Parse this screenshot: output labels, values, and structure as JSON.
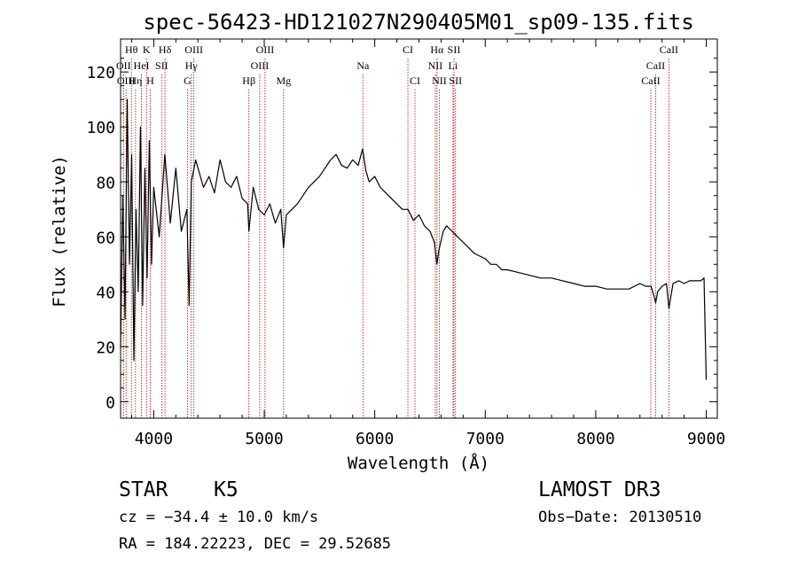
{
  "chart_data": {
    "type": "line",
    "title": "spec-56423-HD121027N290405M01_sp09-135.fits",
    "xlabel": "Wavelength (Å)",
    "ylabel": "Flux (relative)",
    "xlim": [
      3700,
      9100
    ],
    "ylim": [
      -6,
      132
    ],
    "xticks": [
      4000,
      5000,
      6000,
      7000,
      8000,
      9000
    ],
    "yticks": [
      0,
      20,
      40,
      60,
      80,
      100,
      120
    ],
    "grid": false,
    "series": [
      {
        "name": "flux",
        "x": [
          3700,
          3720,
          3740,
          3760,
          3780,
          3800,
          3820,
          3840,
          3860,
          3880,
          3900,
          3920,
          3940,
          3960,
          3980,
          4000,
          4050,
          4100,
          4150,
          4200,
          4250,
          4300,
          4320,
          4340,
          4380,
          4450,
          4500,
          4550,
          4600,
          4650,
          4700,
          4750,
          4800,
          4850,
          4861,
          4900,
          4950,
          5000,
          5050,
          5100,
          5150,
          5175,
          5200,
          5250,
          5300,
          5350,
          5400,
          5450,
          5500,
          5550,
          5600,
          5650,
          5700,
          5750,
          5800,
          5850,
          5890,
          5920,
          5950,
          6000,
          6050,
          6100,
          6150,
          6200,
          6250,
          6300,
          6350,
          6400,
          6450,
          6500,
          6540,
          6563,
          6580,
          6620,
          6650,
          6700,
          6750,
          6800,
          6850,
          6900,
          6950,
          7000,
          7050,
          7100,
          7150,
          7200,
          7300,
          7400,
          7500,
          7600,
          7700,
          7800,
          7900,
          8000,
          8100,
          8200,
          8300,
          8400,
          8450,
          8500,
          8530,
          8542,
          8560,
          8600,
          8640,
          8662,
          8700,
          8750,
          8800,
          8850,
          8900,
          8950,
          8980,
          9000
        ],
        "y": [
          20,
          75,
          30,
          110,
          50,
          90,
          15,
          70,
          40,
          100,
          35,
          85,
          45,
          95,
          50,
          78,
          60,
          90,
          65,
          85,
          62,
          70,
          35,
          80,
          88,
          78,
          82,
          76,
          88,
          80,
          78,
          82,
          74,
          72,
          62,
          78,
          70,
          68,
          72,
          65,
          70,
          56,
          68,
          70,
          72,
          75,
          78,
          80,
          82,
          85,
          88,
          90,
          86,
          85,
          88,
          86,
          92,
          84,
          80,
          82,
          78,
          76,
          74,
          72,
          70,
          70,
          66,
          68,
          64,
          62,
          58,
          50,
          55,
          62,
          64,
          62,
          60,
          58,
          56,
          54,
          53,
          52,
          50,
          50,
          48,
          48,
          47,
          46,
          45,
          45,
          44,
          43,
          42,
          42,
          41,
          41,
          41,
          43,
          42,
          42,
          38,
          36,
          40,
          42,
          43,
          34,
          43,
          44,
          43,
          44,
          44,
          44,
          45,
          8
        ]
      }
    ],
    "lines": [
      {
        "label": "Hθ",
        "x": 3798,
        "row": 0
      },
      {
        "label": "K",
        "x": 3934,
        "row": 0
      },
      {
        "label": "Hδ",
        "x": 4102,
        "row": 0
      },
      {
        "label": "OIII",
        "x": 4363,
        "row": 0
      },
      {
        "label": "OIII",
        "x": 5007,
        "row": 0
      },
      {
        "label": "CI",
        "x": 6300,
        "row": 0
      },
      {
        "label": "Hα",
        "x": 6563,
        "row": 0
      },
      {
        "label": "SII",
        "x": 6717,
        "row": 0
      },
      {
        "label": "CaII",
        "x": 8662,
        "row": 0
      },
      {
        "label": "OII",
        "x": 3727,
        "row": 1
      },
      {
        "label": "HeI",
        "x": 3889,
        "row": 1
      },
      {
        "label": "SII",
        "x": 4072,
        "row": 1
      },
      {
        "label": "Hγ",
        "x": 4340,
        "row": 1
      },
      {
        "label": "OIII",
        "x": 4959,
        "row": 1
      },
      {
        "label": "Na",
        "x": 5893,
        "row": 1
      },
      {
        "label": "NII",
        "x": 6548,
        "row": 1
      },
      {
        "label": "Li",
        "x": 6708,
        "row": 1
      },
      {
        "label": "CaII",
        "x": 8542,
        "row": 1
      },
      {
        "label": "OIII",
        "x": 3750,
        "row": 2
      },
      {
        "label": "Hη",
        "x": 3835,
        "row": 2
      },
      {
        "label": "H",
        "x": 3968,
        "row": 2
      },
      {
        "label": "G",
        "x": 4305,
        "row": 2
      },
      {
        "label": "Hβ",
        "x": 4861,
        "row": 2
      },
      {
        "label": "Mg",
        "x": 5175,
        "row": 2
      },
      {
        "label": "CI",
        "x": 6364,
        "row": 2
      },
      {
        "label": "NII",
        "x": 6584,
        "row": 2
      },
      {
        "label": "SII",
        "x": 6731,
        "row": 2
      },
      {
        "label": "CaII",
        "x": 8498,
        "row": 2
      }
    ]
  },
  "info": {
    "object_class": "STAR",
    "subclass": "K5",
    "survey": "LAMOST DR3",
    "redshift_line": "cz = −34.4 ± 10.0 km/s",
    "obs_date": "Obs−Date: 20130510",
    "coords": "RA = 184.22223, DEC =  29.52685"
  },
  "colors": {
    "spectrum": "#000000",
    "line_markers": "#c00000",
    "axis": "#000000"
  }
}
